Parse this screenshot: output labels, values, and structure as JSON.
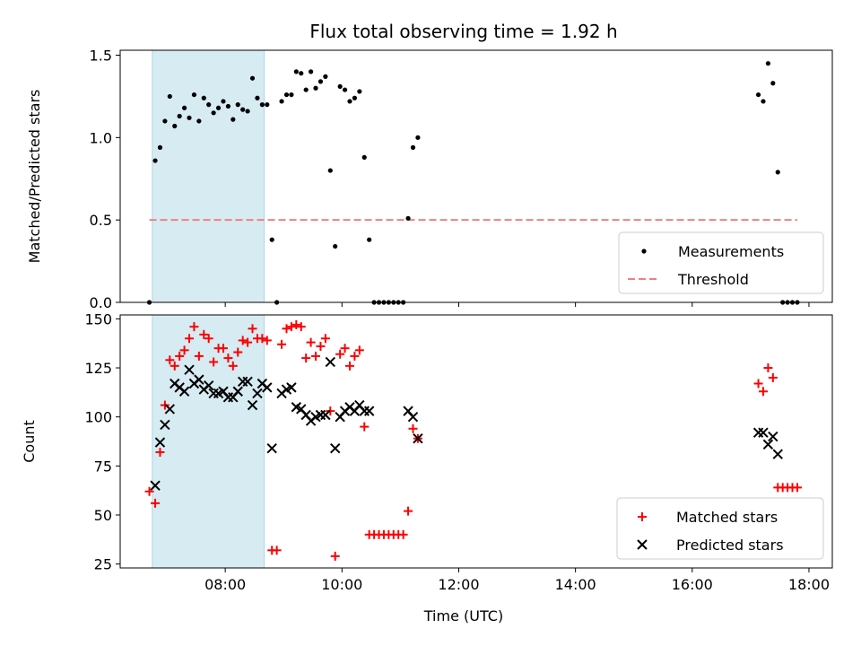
{
  "figure": {
    "title": "Flux total observing time = 1.92 h",
    "xlabel": "Time (UTC)"
  },
  "colors": {
    "measurement": "#000000",
    "threshold": "#f08080",
    "matched": "#ff0000",
    "predicted": "#000000",
    "shade": "#add8e6"
  },
  "chart_data": [
    {
      "type": "scatter",
      "ylabel": "Matched/Predicted stars",
      "xlim": [
        "06:12",
        "18:24"
      ],
      "ylim": [
        0,
        1.53
      ],
      "x_ticks": [
        "08:00",
        "10:00",
        "12:00",
        "14:00",
        "16:00",
        "18:00"
      ],
      "y_ticks": [
        "0.0",
        "0.5",
        "1.0",
        "1.5"
      ],
      "shaded_interval": [
        "06:45",
        "08:40"
      ],
      "legend_position": "lower right",
      "legend": [
        {
          "label": "Measurements",
          "marker": "dot"
        },
        {
          "label": "Threshold",
          "marker": "dashed-line"
        }
      ],
      "threshold": {
        "name": "Threshold",
        "value": 0.5,
        "x_range": [
          "06:42",
          "17:48"
        ]
      },
      "series": [
        {
          "name": "Measurements",
          "x": [
            "06:42",
            "06:48",
            "06:53",
            "06:58",
            "07:03",
            "07:08",
            "07:13",
            "07:18",
            "07:23",
            "07:28",
            "07:33",
            "07:38",
            "07:43",
            "07:48",
            "07:53",
            "07:58",
            "08:03",
            "08:08",
            "08:13",
            "08:18",
            "08:23",
            "08:28",
            "08:33",
            "08:38",
            "08:43",
            "08:48",
            "08:53",
            "08:58",
            "09:03",
            "09:08",
            "09:13",
            "09:18",
            "09:23",
            "09:28",
            "09:33",
            "09:38",
            "09:43",
            "09:48",
            "09:53",
            "09:58",
            "10:03",
            "10:08",
            "10:13",
            "10:18",
            "10:23",
            "10:28",
            "10:33",
            "10:38",
            "10:43",
            "10:48",
            "10:53",
            "10:58",
            "11:03",
            "11:08",
            "11:13",
            "11:18",
            "17:08",
            "17:13",
            "17:18",
            "17:23",
            "17:28",
            "17:33",
            "17:38",
            "17:43",
            "17:48"
          ],
          "values": [
            0.0,
            0.86,
            0.94,
            1.1,
            1.25,
            1.07,
            1.13,
            1.18,
            1.12,
            1.26,
            1.1,
            1.24,
            1.2,
            1.15,
            1.18,
            1.22,
            1.19,
            1.11,
            1.2,
            1.17,
            1.16,
            1.36,
            1.24,
            1.2,
            1.2,
            0.38,
            0.0,
            1.22,
            1.26,
            1.26,
            1.4,
            1.39,
            1.29,
            1.4,
            1.3,
            1.34,
            1.37,
            0.8,
            0.34,
            1.31,
            1.29,
            1.22,
            1.24,
            1.28,
            0.88,
            0.38,
            0.0,
            0.0,
            0.0,
            0.0,
            0.0,
            0.0,
            0.0,
            0.51,
            0.94,
            1.0,
            1.26,
            1.22,
            1.45,
            1.33,
            0.79,
            0.0,
            0.0,
            0.0,
            0.0
          ]
        }
      ]
    },
    {
      "type": "scatter",
      "ylabel": "Count",
      "xlabel": "Time (UTC)",
      "xlim": [
        "06:12",
        "18:24"
      ],
      "ylim": [
        23,
        152
      ],
      "x_ticks": [
        "08:00",
        "10:00",
        "12:00",
        "14:00",
        "16:00",
        "18:00"
      ],
      "y_ticks": [
        "25",
        "50",
        "75",
        "100",
        "125",
        "150"
      ],
      "shaded_interval": [
        "06:45",
        "08:40"
      ],
      "legend_position": "lower right",
      "legend": [
        {
          "label": "Matched stars",
          "marker": "plus"
        },
        {
          "label": "Predicted stars",
          "marker": "x"
        }
      ],
      "series": [
        {
          "name": "Matched stars",
          "x": [
            "06:42",
            "06:48",
            "06:53",
            "06:58",
            "07:03",
            "07:08",
            "07:13",
            "07:18",
            "07:23",
            "07:28",
            "07:33",
            "07:38",
            "07:43",
            "07:48",
            "07:53",
            "07:58",
            "08:03",
            "08:08",
            "08:13",
            "08:18",
            "08:23",
            "08:28",
            "08:33",
            "08:38",
            "08:43",
            "08:48",
            "08:53",
            "08:58",
            "09:03",
            "09:08",
            "09:13",
            "09:18",
            "09:23",
            "09:28",
            "09:33",
            "09:38",
            "09:43",
            "09:48",
            "09:53",
            "09:58",
            "10:03",
            "10:08",
            "10:13",
            "10:18",
            "10:23",
            "10:28",
            "10:33",
            "10:38",
            "10:43",
            "10:48",
            "10:53",
            "10:58",
            "11:03",
            "11:08",
            "11:13",
            "11:18",
            "17:08",
            "17:13",
            "17:18",
            "17:23",
            "17:28",
            "17:33",
            "17:38",
            "17:43",
            "17:48"
          ],
          "values": [
            62,
            56,
            82,
            106,
            129,
            126,
            131,
            134,
            140,
            146,
            131,
            142,
            140,
            128,
            135,
            135,
            130,
            126,
            133,
            139,
            138,
            145,
            140,
            140,
            139,
            32,
            32,
            137,
            145,
            146,
            147,
            146,
            130,
            138,
            131,
            136,
            140,
            103,
            29,
            132,
            135,
            126,
            131,
            134,
            95,
            40,
            40,
            40,
            40,
            40,
            40,
            40,
            40,
            52,
            94,
            89,
            117,
            113,
            125,
            120,
            64,
            64,
            64,
            64,
            64
          ]
        },
        {
          "name": "Predicted stars",
          "x": [
            "06:48",
            "06:53",
            "06:58",
            "07:03",
            "07:08",
            "07:13",
            "07:18",
            "07:23",
            "07:28",
            "07:33",
            "07:38",
            "07:43",
            "07:48",
            "07:53",
            "07:58",
            "08:03",
            "08:08",
            "08:13",
            "08:18",
            "08:23",
            "08:28",
            "08:33",
            "08:38",
            "08:43",
            "08:48",
            "08:58",
            "09:03",
            "09:08",
            "09:13",
            "09:18",
            "09:23",
            "09:28",
            "09:33",
            "09:38",
            "09:43",
            "09:48",
            "09:53",
            "09:58",
            "10:03",
            "10:08",
            "10:13",
            "10:18",
            "10:23",
            "10:28",
            "11:08",
            "11:13",
            "11:18",
            "17:08",
            "17:13",
            "17:18",
            "17:23",
            "17:28"
          ],
          "values": [
            65,
            87,
            96,
            104,
            117,
            115,
            113,
            124,
            117,
            119,
            114,
            116,
            112,
            112,
            113,
            110,
            110,
            113,
            118,
            118,
            106,
            112,
            117,
            115,
            84,
            112,
            114,
            115,
            105,
            104,
            101,
            98,
            100,
            101,
            101,
            128,
            84,
            100,
            103,
            105,
            103,
            106,
            103,
            103,
            103,
            100,
            89,
            92,
            92,
            86,
            90,
            81
          ]
        }
      ]
    }
  ]
}
